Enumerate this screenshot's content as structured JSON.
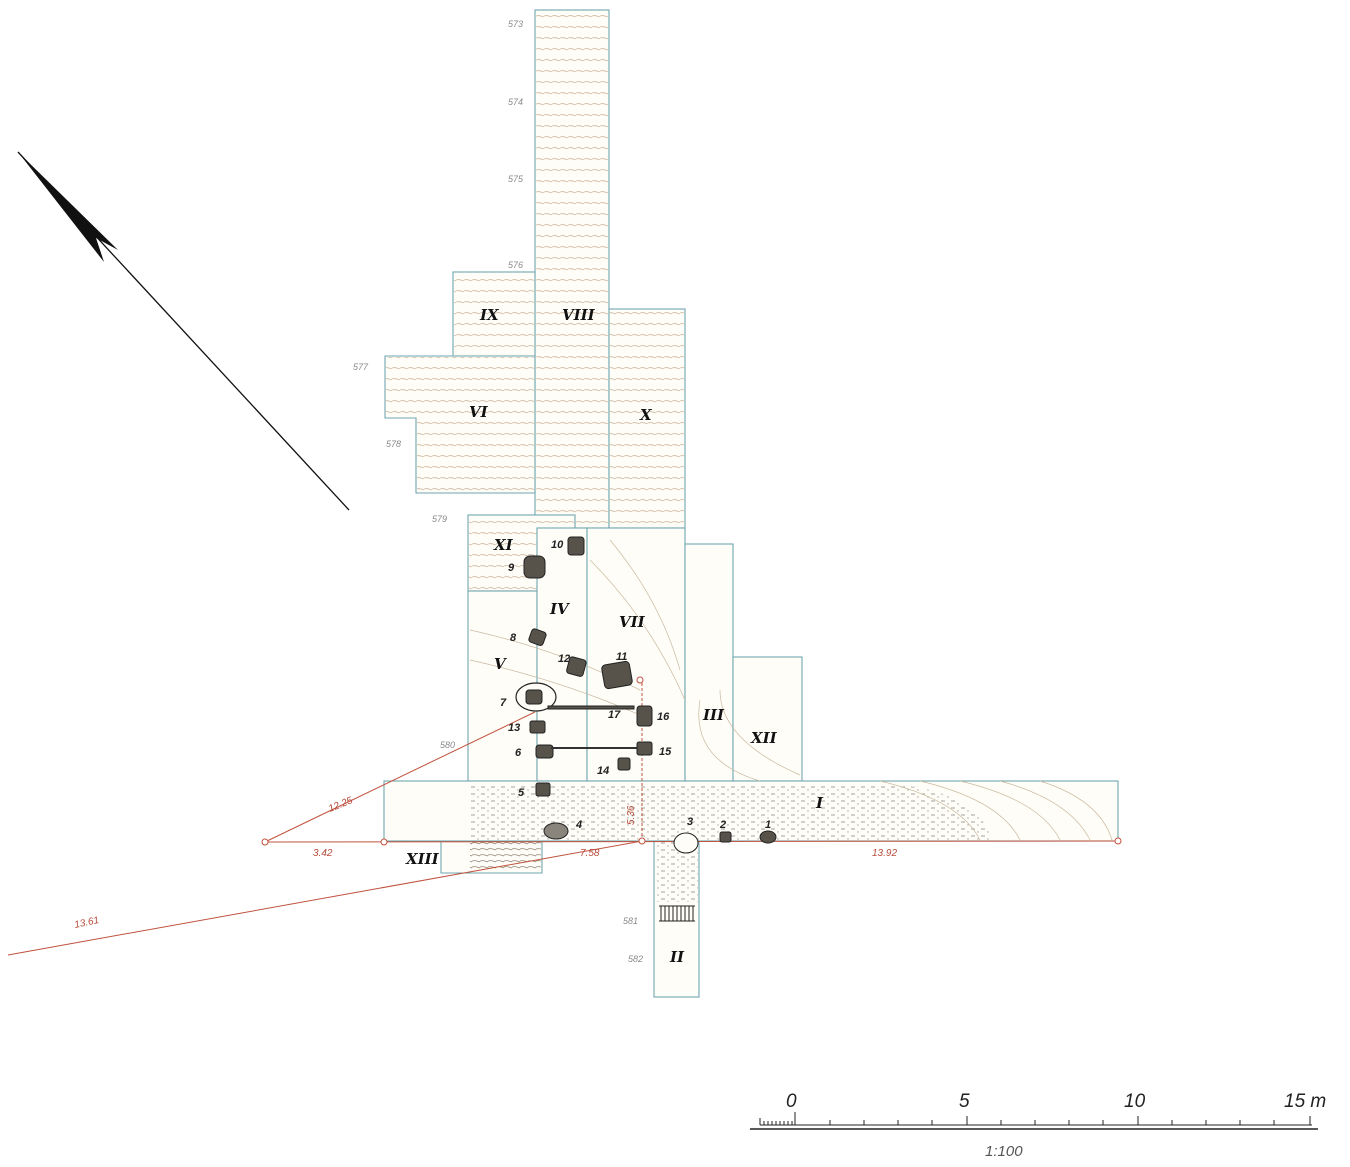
{
  "trench_labels": [
    "IX",
    "VIII",
    "VI",
    "X",
    "XI",
    "IV",
    "VII",
    "V",
    "III",
    "XII",
    "I",
    "XIII",
    "II"
  ],
  "stone_numbers": [
    "10",
    "9",
    "8",
    "12",
    "11",
    "7",
    "17",
    "13",
    "16",
    "6",
    "15",
    "14",
    "5",
    "4",
    "3",
    "2",
    "1"
  ],
  "contour_labels": [
    "573",
    "574",
    "575",
    "576",
    "577",
    "578",
    "579",
    "580",
    "581",
    "582"
  ],
  "distances": [
    "12.25",
    "3.42",
    "13.61",
    "7.58",
    "5.36",
    "13.92"
  ],
  "scale_bar": {
    "ticks": [
      "0",
      "5",
      "10",
      "15 m"
    ],
    "ratio": "1:100"
  },
  "colors": {
    "trench_outline": "#6fa6b0",
    "survey_line": "#c0513d",
    "stone": "#57524a",
    "hatching": "#b89c7c"
  },
  "north_arrow_icon": "north-arrow-icon"
}
